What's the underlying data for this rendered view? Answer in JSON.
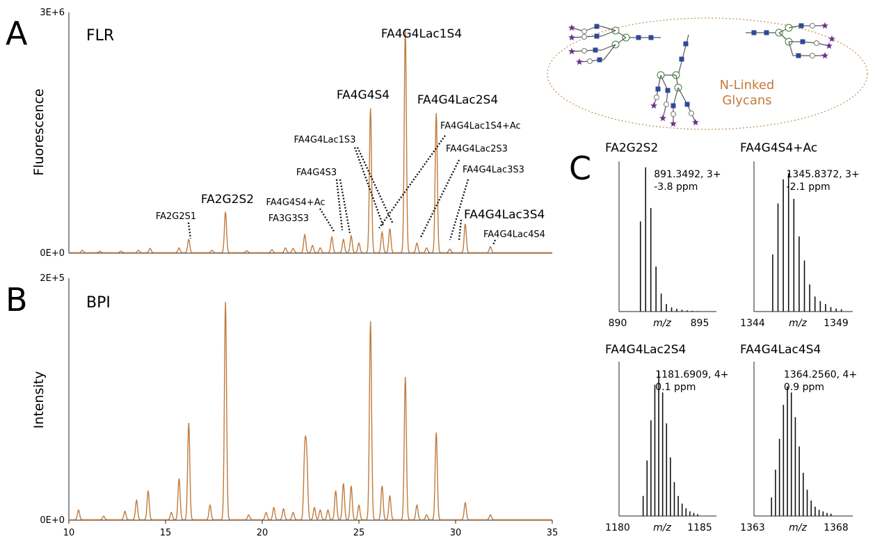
{
  "panels": {
    "a_letter": "A",
    "b_letter": "B",
    "c_letter": "C"
  },
  "inset": {
    "caption_line1": "N-Linked",
    "caption_line2": "Glycans"
  },
  "colors": {
    "trace": "#c07a3c",
    "spectrum": "#111111",
    "glycan_fill": "#2c4a96",
    "sialic_acid": "#6b2f8e",
    "ellipse_border": "#c08a50",
    "caption": "#c47a3a"
  },
  "chart_data": [
    {
      "id": "A",
      "type": "line",
      "title": "FLR",
      "xlabel": "",
      "ylabel": "Fluorescence",
      "xlim": [
        10,
        35
      ],
      "ylim": [
        0,
        3000000
      ],
      "ytick_labels": [
        "0E+0",
        "3E+6"
      ],
      "grid": false,
      "series": [
        {
          "peaks": [
            {
              "x": 10.7,
              "h": 0.01
            },
            {
              "x": 11.6,
              "h": 0.006
            },
            {
              "x": 12.7,
              "h": 0.006
            },
            {
              "x": 13.6,
              "h": 0.01
            },
            {
              "x": 14.2,
              "h": 0.018
            },
            {
              "x": 15.7,
              "h": 0.02
            },
            {
              "x": 16.2,
              "h": 0.055
            },
            {
              "x": 17.4,
              "h": 0.01
            },
            {
              "x": 18.1,
              "h": 0.17
            },
            {
              "x": 19.2,
              "h": 0.008
            },
            {
              "x": 20.5,
              "h": 0.012
            },
            {
              "x": 21.2,
              "h": 0.02
            },
            {
              "x": 21.6,
              "h": 0.018
            },
            {
              "x": 22.2,
              "h": 0.075
            },
            {
              "x": 22.6,
              "h": 0.03
            },
            {
              "x": 23.0,
              "h": 0.02
            },
            {
              "x": 23.6,
              "h": 0.065
            },
            {
              "x": 24.2,
              "h": 0.055
            },
            {
              "x": 24.6,
              "h": 0.07
            },
            {
              "x": 25.0,
              "h": 0.04
            },
            {
              "x": 25.6,
              "h": 0.6
            },
            {
              "x": 26.2,
              "h": 0.085
            },
            {
              "x": 26.6,
              "h": 0.1
            },
            {
              "x": 27.4,
              "h": 0.93
            },
            {
              "x": 28.0,
              "h": 0.04
            },
            {
              "x": 28.5,
              "h": 0.02
            },
            {
              "x": 29.0,
              "h": 0.58
            },
            {
              "x": 29.7,
              "h": 0.015
            },
            {
              "x": 30.5,
              "h": 0.12
            },
            {
              "x": 31.8,
              "h": 0.025
            }
          ]
        }
      ],
      "annotations": [
        {
          "label": "FA2G2S1",
          "x": 16.2
        },
        {
          "label": "FA2G2S2",
          "x": 18.1
        },
        {
          "label": "FA4G4S4+Ac",
          "x": 23.6
        },
        {
          "label": "FA3G3S3",
          "x": 22.2
        },
        {
          "label": "FA4G4S3",
          "x": 24.2
        },
        {
          "label": "FA4G4Lac1S3",
          "x": 26.2
        },
        {
          "label": "FA4G4S4",
          "x": 25.6
        },
        {
          "label": "FA4G4Lac1S4",
          "x": 27.4
        },
        {
          "label": "FA4G4Lac2S4",
          "x": 29.0
        },
        {
          "label": "FA4G4Lac1S4+Ac",
          "x": 26.0
        },
        {
          "label": "FA4G4Lac2S3",
          "x": 28.0
        },
        {
          "label": "FA4G4Lac3S3",
          "x": 29.7
        },
        {
          "label": "FA4G4Lac3S4",
          "x": 30.5
        },
        {
          "label": "FA4G4Lac4S4",
          "x": 31.8
        }
      ]
    },
    {
      "id": "B",
      "type": "line",
      "title": "BPI",
      "xlabel": "",
      "ylabel": "Intensity",
      "xlim": [
        10,
        35
      ],
      "ylim": [
        0,
        200000
      ],
      "ytick_labels": [
        "0E+0",
        "2E+5"
      ],
      "xticks": [
        10,
        15,
        20,
        25,
        30,
        35
      ],
      "grid": false,
      "series": [
        {
          "peaks": [
            {
              "x": 10.5,
              "h": 0.04
            },
            {
              "x": 11.8,
              "h": 0.015
            },
            {
              "x": 12.9,
              "h": 0.035
            },
            {
              "x": 13.5,
              "h": 0.08
            },
            {
              "x": 14.1,
              "h": 0.12
            },
            {
              "x": 15.3,
              "h": 0.03
            },
            {
              "x": 15.7,
              "h": 0.17
            },
            {
              "x": 16.2,
              "h": 0.4
            },
            {
              "x": 17.3,
              "h": 0.06
            },
            {
              "x": 18.1,
              "h": 0.9
            },
            {
              "x": 19.3,
              "h": 0.02
            },
            {
              "x": 20.2,
              "h": 0.03
            },
            {
              "x": 20.6,
              "h": 0.05
            },
            {
              "x": 21.1,
              "h": 0.045
            },
            {
              "x": 21.6,
              "h": 0.03
            },
            {
              "x": 22.2,
              "h": 0.27
            },
            {
              "x": 22.3,
              "h": 0.25
            },
            {
              "x": 22.7,
              "h": 0.05
            },
            {
              "x": 23.0,
              "h": 0.04
            },
            {
              "x": 23.4,
              "h": 0.04
            },
            {
              "x": 23.8,
              "h": 0.12
            },
            {
              "x": 24.2,
              "h": 0.15
            },
            {
              "x": 24.6,
              "h": 0.14
            },
            {
              "x": 25.0,
              "h": 0.06
            },
            {
              "x": 25.6,
              "h": 0.82
            },
            {
              "x": 26.2,
              "h": 0.14
            },
            {
              "x": 26.6,
              "h": 0.1
            },
            {
              "x": 27.4,
              "h": 0.59
            },
            {
              "x": 28.0,
              "h": 0.06
            },
            {
              "x": 28.5,
              "h": 0.02
            },
            {
              "x": 29.0,
              "h": 0.36
            },
            {
              "x": 30.5,
              "h": 0.07
            },
            {
              "x": 31.8,
              "h": 0.02
            }
          ]
        }
      ]
    },
    {
      "id": "C1",
      "type": "bar",
      "title": "FA2G2S2",
      "annotation": [
        "891.3492, 3+",
        "-3.8 ppm"
      ],
      "xlabel": "m/z",
      "xlim": [
        890,
        895
      ],
      "xtick_labels": [
        "890",
        "895"
      ],
      "first_mz": 891.0159,
      "spacing": 0.3333,
      "values": [
        0.6,
        0.96,
        0.69,
        0.3,
        0.12,
        0.05,
        0.028,
        0.018,
        0.012,
        0.008,
        0.005,
        0.003
      ]
    },
    {
      "id": "C2",
      "type": "bar",
      "title": "FA4G4S4+Ac",
      "annotation": [
        "1345.8372, 3+",
        "-2.1 ppm"
      ],
      "xlabel": "m/z",
      "xlim": [
        1344,
        1349
      ],
      "xtick_labels": [
        "1344",
        "1349"
      ],
      "first_mz": 1344.83,
      "spacing": 0.3333,
      "values": [
        0.38,
        0.72,
        0.88,
        0.92,
        0.75,
        0.5,
        0.34,
        0.18,
        0.1,
        0.07,
        0.05,
        0.03,
        0.02,
        0.015
      ]
    },
    {
      "id": "C3",
      "type": "bar",
      "title": "FA4G4Lac2S4",
      "annotation": [
        "1181.6909, 4+",
        "0.1 ppm"
      ],
      "xlabel": "m/z",
      "xlim": [
        1180,
        1185
      ],
      "xtick_labels": [
        "1180",
        "1185"
      ],
      "first_mz": 1181.1909,
      "spacing": 0.25,
      "values": [
        0.13,
        0.36,
        0.62,
        0.85,
        0.94,
        0.8,
        0.6,
        0.38,
        0.22,
        0.13,
        0.08,
        0.05,
        0.03,
        0.02,
        0.012
      ]
    },
    {
      "id": "C4",
      "type": "bar",
      "title": "FA4G4Lac4S4",
      "annotation": [
        "1364.2560, 4+",
        "0.9 ppm"
      ],
      "xlabel": "m/z",
      "xlim": [
        1363,
        1368
      ],
      "xtick_labels": [
        "1363",
        "1368"
      ],
      "first_mz": 1363.756,
      "spacing": 0.25,
      "values": [
        0.12,
        0.3,
        0.5,
        0.72,
        0.84,
        0.8,
        0.64,
        0.45,
        0.28,
        0.17,
        0.1,
        0.06,
        0.04,
        0.03,
        0.02,
        0.015
      ]
    }
  ]
}
